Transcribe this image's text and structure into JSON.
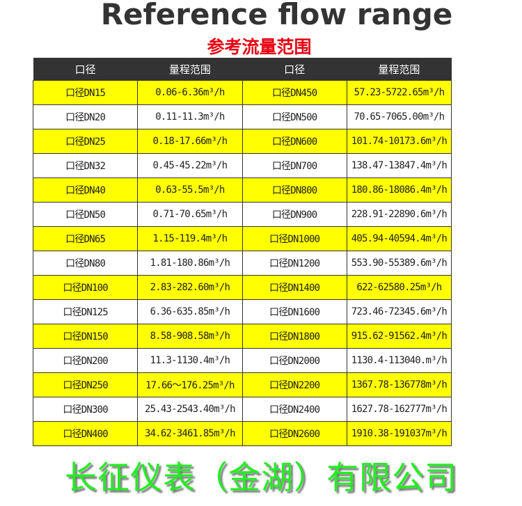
{
  "title": "Reference flow range",
  "subtitle": "参考流量范围",
  "headers": [
    "口径",
    "量程范围",
    "口径",
    "量程范围"
  ],
  "rows": [
    [
      "口径DN15",
      "0.06-6.36m³/h",
      "口径DN450",
      "57.23-5722.65m³/h"
    ],
    [
      "口径DN20",
      "0.11-11.3m³/h",
      "口径DN500",
      "70.65-7065.00m³/h"
    ],
    [
      "口径DN25",
      "0.18-17.66m³/h",
      "口径DN600",
      "101.74-10173.6m³/h"
    ],
    [
      "口径DN32",
      "0.45-45.22m³/h",
      "口径DN700",
      "138.47-13847.4m³/h"
    ],
    [
      "口径DN40",
      "0.63-55.5m³/h",
      "口径DN800",
      "180.86-18086.4m³/h"
    ],
    [
      "口径DN50",
      "0.71-70.65m³/h",
      "口径DN900",
      "228.91-22890.6m³/h"
    ],
    [
      "口径DN65",
      "1.15-119.4m³/h",
      "口径DN1000",
      "405.94-40594.4m³/h"
    ],
    [
      "口径DN80",
      "1.81-180.86m³/h",
      "口径DN1200",
      "553.90-55389.6m³/h"
    ],
    [
      "口径DN100",
      "2.83-282.60m³/h",
      "口径DN1400",
      "622-62580.25m³/h"
    ],
    [
      "口径DN125",
      "6.36-635.85m³/h",
      "口径DN1600",
      "723.46-72345.6m³/h"
    ],
    [
      "口径DN150",
      "8.58-908.58m³/h",
      "口径DN1800",
      "915.62-91562.4m³/h"
    ],
    [
      "口径DN200",
      "11.3-1130.4m³/h",
      "口径DN2000",
      "1130.4-113040.m³/h"
    ],
    [
      "口径DN250",
      "17.66～176.25m³/h",
      "口径DN2200",
      "1367.78-136778m³/h"
    ],
    [
      "口径DN300",
      "25.43-2543.40m³/h",
      "口径DN2400",
      "1627.78-162777m³/h"
    ],
    [
      "口径DN400",
      "34.62-3461.85m³/h",
      "口径DN2600",
      "1910.38-191037m³/h"
    ]
  ],
  "watermark": "长征仪表（金湖）有限公司",
  "colors": {
    "header_bg": "#333333",
    "highlight_row": "#ffff00",
    "title": "#333333",
    "subtitle": "#e60012",
    "watermark": "#22ee22"
  }
}
